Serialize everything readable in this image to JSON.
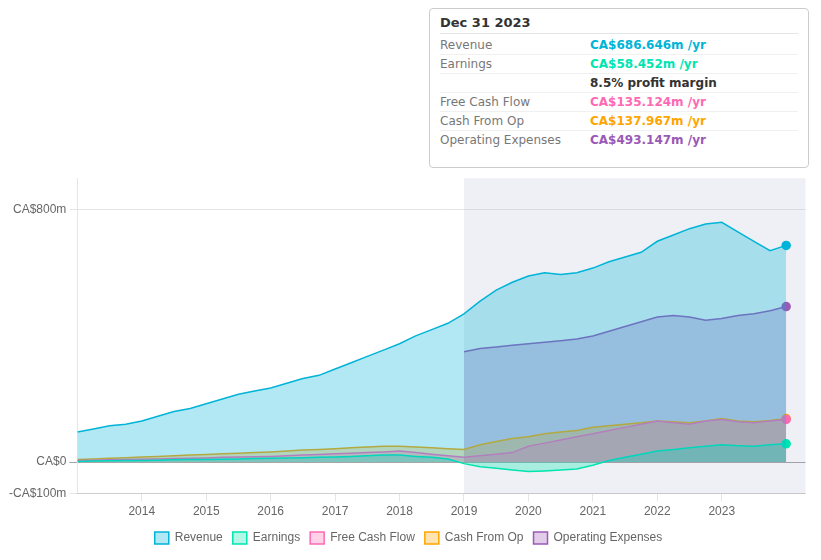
{
  "chart_data": {
    "type": "area",
    "x": [
      2013.0,
      2013.25,
      2013.5,
      2013.75,
      2014.0,
      2014.25,
      2014.5,
      2014.75,
      2015.0,
      2015.25,
      2015.5,
      2015.75,
      2016.0,
      2016.25,
      2016.5,
      2016.75,
      2017.0,
      2017.25,
      2017.5,
      2017.75,
      2018.0,
      2018.25,
      2018.5,
      2018.75,
      2019.0,
      2019.25,
      2019.5,
      2019.75,
      2020.0,
      2020.25,
      2020.5,
      2020.75,
      2021.0,
      2021.25,
      2021.5,
      2021.75,
      2022.0,
      2022.25,
      2022.5,
      2022.75,
      2023.0,
      2023.25,
      2023.5,
      2023.75,
      2024.0
    ],
    "series": [
      {
        "name": "Revenue",
        "color": "#00b4d8",
        "values": [
          95,
          105,
          115,
          120,
          130,
          145,
          160,
          170,
          185,
          200,
          215,
          225,
          235,
          250,
          265,
          275,
          295,
          315,
          335,
          355,
          375,
          400,
          420,
          440,
          470,
          510,
          545,
          570,
          590,
          600,
          595,
          600,
          615,
          635,
          650,
          665,
          700,
          720,
          740,
          755,
          760,
          730,
          700,
          670,
          687
        ]
      },
      {
        "name": "Earnings",
        "color": "#00e5b0",
        "values": [
          2,
          3,
          4,
          5,
          5,
          6,
          7,
          8,
          8,
          9,
          10,
          11,
          12,
          13,
          14,
          15,
          16,
          18,
          20,
          22,
          22,
          18,
          15,
          10,
          -5,
          -15,
          -20,
          -25,
          -30,
          -28,
          -25,
          -22,
          -10,
          5,
          15,
          25,
          35,
          40,
          45,
          50,
          55,
          52,
          50,
          55,
          58
        ]
      },
      {
        "name": "Free Cash Flow",
        "color": "#ff69b4",
        "values": [
          5,
          6,
          7,
          8,
          9,
          10,
          11,
          12,
          13,
          15,
          16,
          17,
          18,
          20,
          22,
          24,
          26,
          28,
          30,
          32,
          35,
          30,
          25,
          20,
          15,
          20,
          25,
          30,
          50,
          60,
          70,
          80,
          90,
          100,
          110,
          120,
          130,
          125,
          120,
          130,
          135,
          128,
          125,
          130,
          135
        ]
      },
      {
        "name": "Cash From Op",
        "color": "#ffa500",
        "values": [
          8,
          10,
          12,
          14,
          16,
          18,
          20,
          22,
          24,
          26,
          28,
          30,
          32,
          35,
          38,
          40,
          42,
          45,
          48,
          50,
          50,
          48,
          45,
          42,
          40,
          55,
          65,
          75,
          80,
          90,
          95,
          100,
          110,
          115,
          120,
          125,
          130,
          128,
          125,
          130,
          138,
          130,
          128,
          132,
          138
        ]
      },
      {
        "name": "Operating Expenses",
        "color": "#9b59b6",
        "values": [
          null,
          null,
          null,
          null,
          null,
          null,
          null,
          null,
          null,
          null,
          null,
          null,
          null,
          null,
          null,
          null,
          null,
          null,
          null,
          null,
          null,
          null,
          null,
          null,
          350,
          360,
          365,
          370,
          375,
          380,
          385,
          390,
          400,
          415,
          430,
          445,
          460,
          465,
          460,
          450,
          455,
          465,
          470,
          480,
          493
        ]
      }
    ],
    "xlim": [
      2013.0,
      2024.3
    ],
    "xticks": [
      2014,
      2015,
      2016,
      2017,
      2018,
      2019,
      2020,
      2021,
      2022,
      2023
    ],
    "ylim": [
      -100,
      900
    ],
    "yticks": [
      {
        "value": 800,
        "label": "CA$800m"
      },
      {
        "value": 0,
        "label": "CA$0"
      },
      {
        "value": -100,
        "label": "-CA$100m"
      }
    ],
    "grid": true,
    "legend": "bottom",
    "highlight": {
      "from": 2019.0,
      "to": 2024.3
    },
    "annotations": [
      {
        "text": "Dec 31 2023"
      },
      {
        "label": "Revenue",
        "text": "CA$686.646m /yr",
        "color": "#00b4d8"
      },
      {
        "label": "Earnings",
        "text": "CA$58.452m /yr",
        "color": "#00e5b0"
      },
      {
        "text": "8.5% profit margin"
      },
      {
        "label": "Free Cash Flow",
        "text": "CA$135.124m /yr",
        "color": "#ff69b4"
      },
      {
        "label": "Cash From Op",
        "text": "CA$137.967m /yr",
        "color": "#ffa500"
      },
      {
        "label": "Operating Expenses",
        "text": "CA$493.147m /yr",
        "color": "#9b59b6"
      }
    ]
  }
}
